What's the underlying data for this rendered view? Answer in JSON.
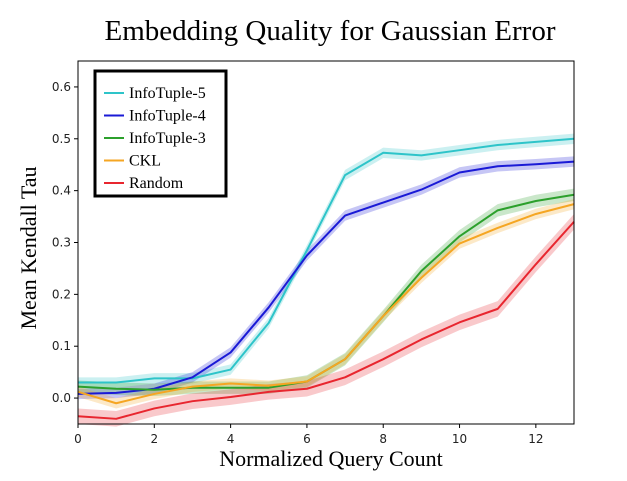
{
  "chart_data": {
    "type": "line",
    "title": "Embedding Quality for Gaussian Error",
    "xlabel": "Normalized Query Count",
    "ylabel": "Mean Kendall Tau",
    "xlim": [
      0,
      13
    ],
    "ylim": [
      -0.05,
      0.65
    ],
    "xticks": [
      0,
      2,
      4,
      6,
      8,
      10,
      12
    ],
    "yticks": [
      0.0,
      0.1,
      0.2,
      0.3,
      0.4,
      0.5,
      0.6
    ],
    "x": [
      0,
      1,
      2,
      3,
      4,
      5,
      6,
      7,
      8,
      9,
      10,
      11,
      12,
      13
    ],
    "legend_location": "top-left",
    "series": [
      {
        "name": "InfoTuple-5",
        "color": "#2ec4c9",
        "values": [
          0.03,
          0.03,
          0.038,
          0.038,
          0.055,
          0.145,
          0.285,
          0.43,
          0.473,
          0.468,
          0.478,
          0.488,
          0.494,
          0.5
        ],
        "band": 0.01
      },
      {
        "name": "InfoTuple-4",
        "color": "#1a1ad6",
        "values": [
          0.008,
          0.01,
          0.018,
          0.04,
          0.088,
          0.175,
          0.275,
          0.352,
          0.377,
          0.402,
          0.435,
          0.447,
          0.451,
          0.456
        ],
        "band": 0.01
      },
      {
        "name": "InfoTuple-3",
        "color": "#2ca02c",
        "values": [
          0.022,
          0.018,
          0.016,
          0.02,
          0.02,
          0.02,
          0.032,
          0.075,
          0.158,
          0.245,
          0.312,
          0.362,
          0.38,
          0.392
        ],
        "band": 0.012
      },
      {
        "name": "CKL",
        "color": "#f5a623",
        "values": [
          0.012,
          -0.01,
          0.008,
          0.022,
          0.028,
          0.024,
          0.032,
          0.075,
          0.158,
          0.232,
          0.298,
          0.328,
          0.355,
          0.374
        ],
        "band": 0.01
      },
      {
        "name": "Random",
        "color": "#e8262f",
        "values": [
          -0.035,
          -0.04,
          -0.02,
          -0.006,
          0.002,
          0.012,
          0.018,
          0.04,
          0.075,
          0.113,
          0.146,
          0.172,
          0.258,
          0.34
        ],
        "band": 0.015
      }
    ]
  }
}
